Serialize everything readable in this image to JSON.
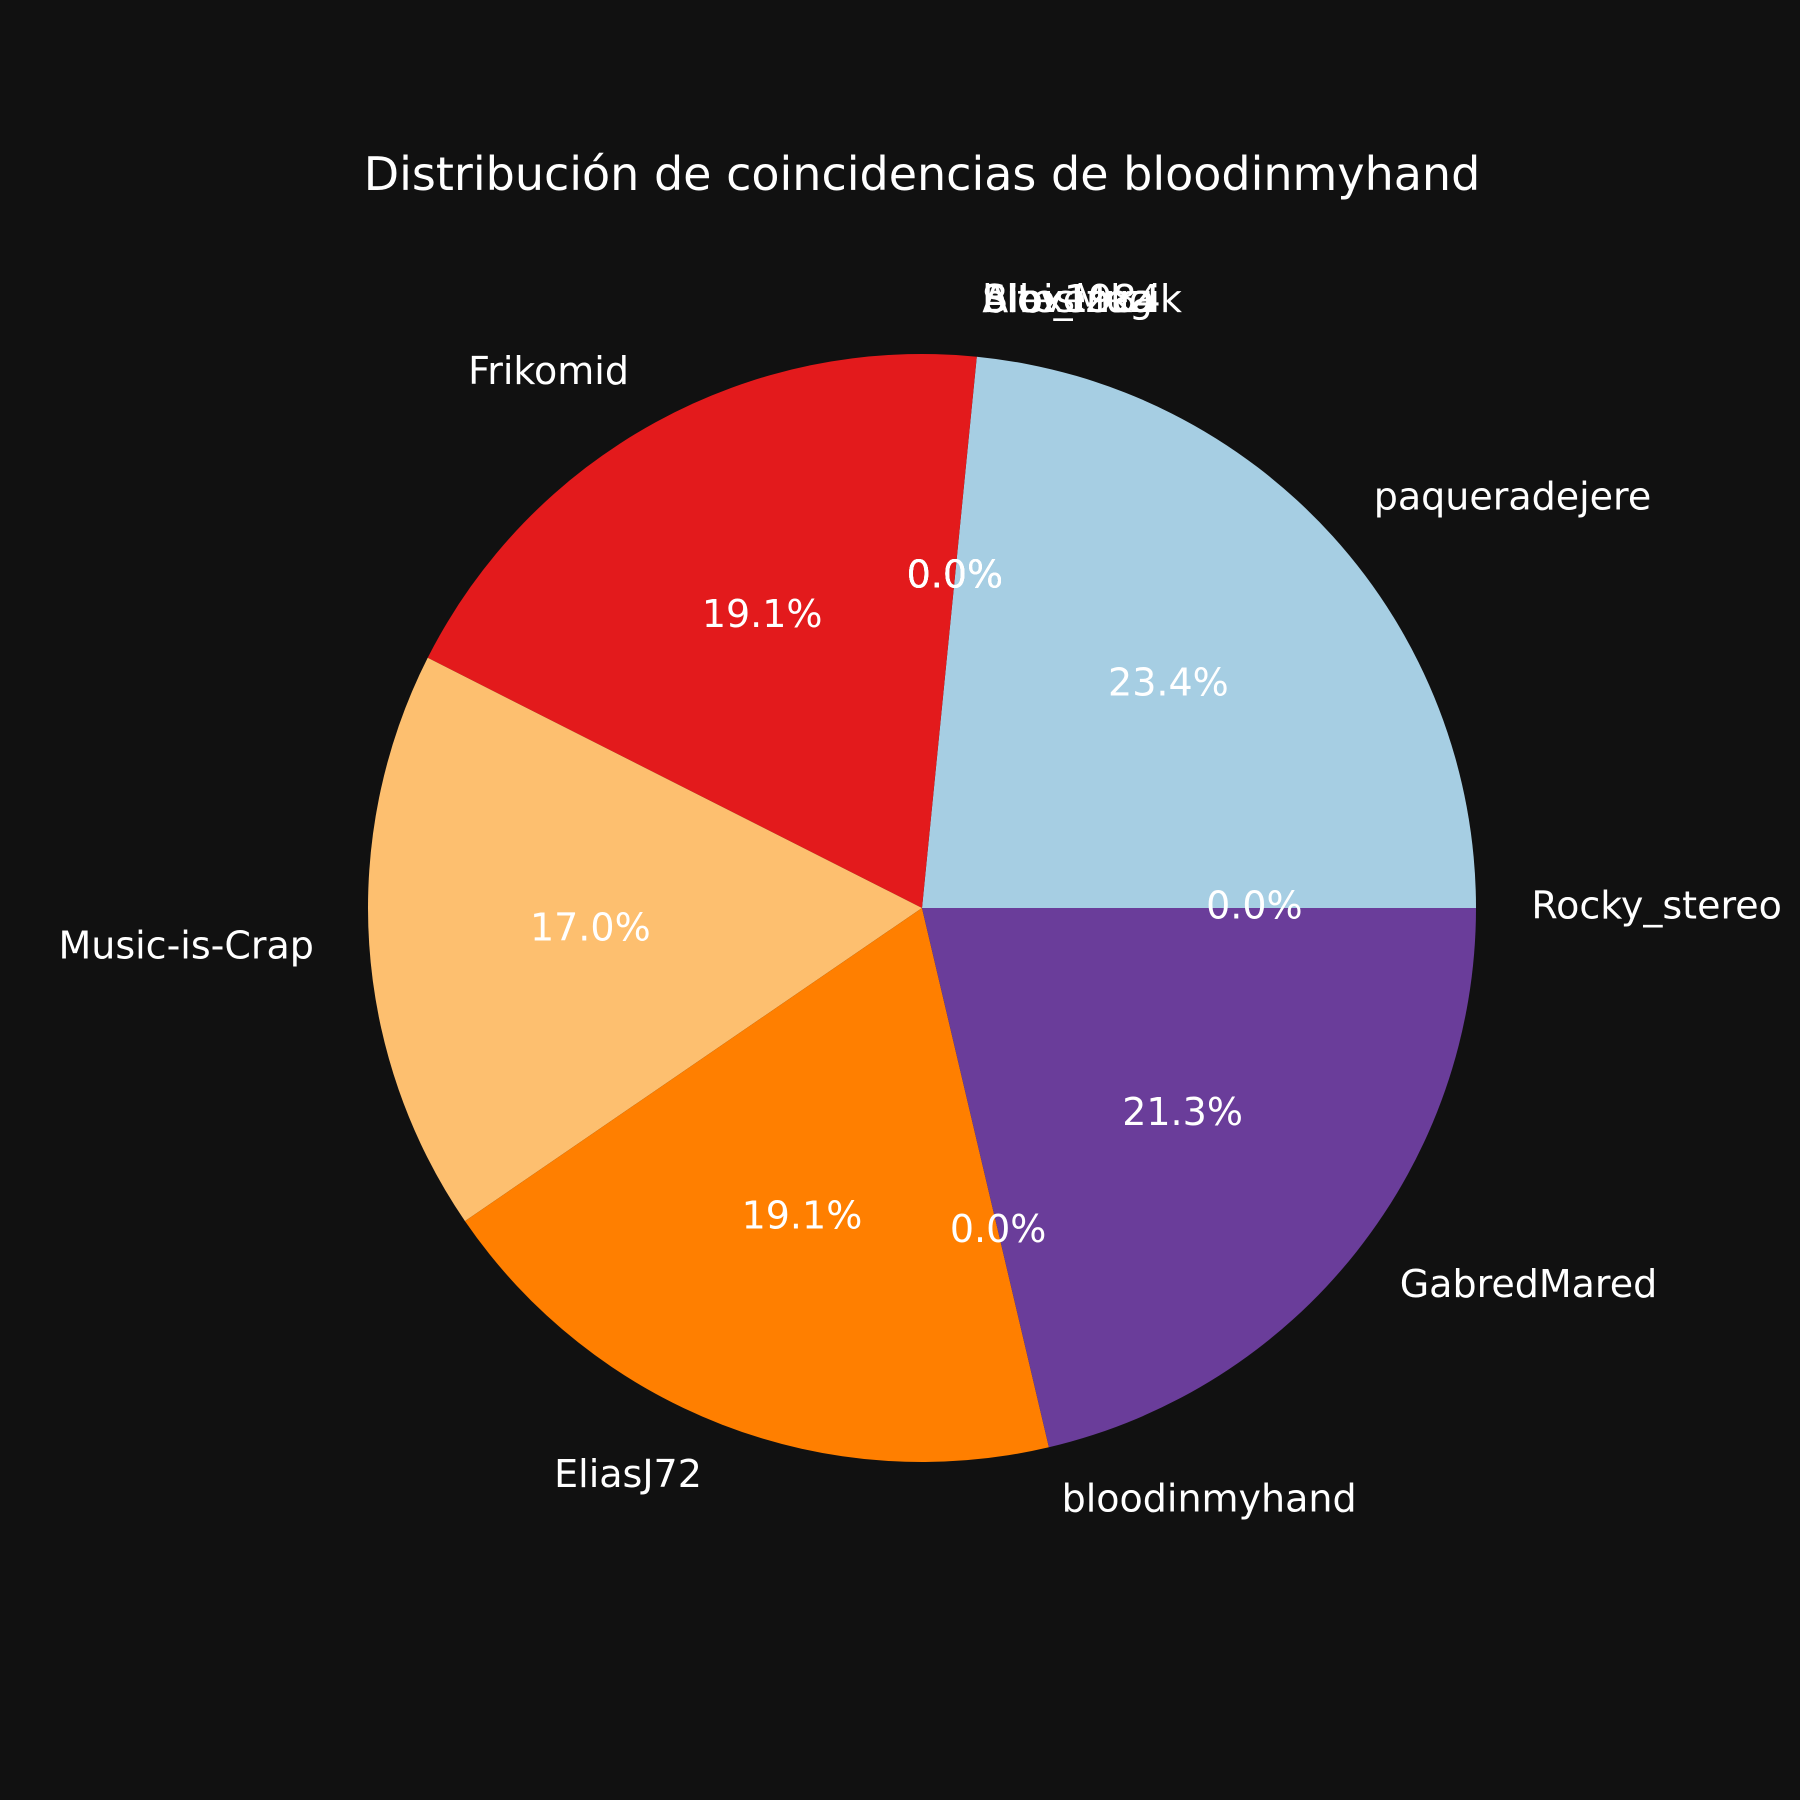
{
  "chart_data": {
    "type": "pie",
    "title": "Distribución de coincidencias de bloodinmyhand",
    "slices": [
      {
        "label": "Rocky_stereo",
        "value": 0.0,
        "pct_label": "0.0%",
        "color": "#a6cee3"
      },
      {
        "label": "paqueradejere",
        "value": 23.4,
        "pct_label": "23.4%",
        "color": "#a6cee3"
      },
      {
        "label": "Bibi_Muzik",
        "value": 0.0,
        "pct_label": "0.0%",
        "color": "#1f78b4"
      },
      {
        "label": "Slovenka",
        "value": 0.0,
        "pct_label": "0.0%",
        "color": "#b2df8a"
      },
      {
        "label": "bitesizeg",
        "value": 0.0,
        "pct_label": "0.0%",
        "color": "#33a02c"
      },
      {
        "label": "Alex1984",
        "value": 0.0,
        "pct_label": "0.0%",
        "color": "#fb9a99"
      },
      {
        "label": "Frikomid",
        "value": 19.1,
        "pct_label": "19.1%",
        "color": "#e31a1c"
      },
      {
        "label": "Music-is-Crap",
        "value": 17.0,
        "pct_label": "17.0%",
        "color": "#fdbf6f"
      },
      {
        "label": "EliasJ72",
        "value": 19.1,
        "pct_label": "19.1%",
        "color": "#ff7f00"
      },
      {
        "label": "bloodinmyhand",
        "value": 0.0,
        "pct_label": "0.0%",
        "color": "#cab2d6"
      },
      {
        "label": "GabredMared",
        "value": 21.3,
        "pct_label": "21.3%",
        "color": "#6a3d9a"
      }
    ]
  }
}
